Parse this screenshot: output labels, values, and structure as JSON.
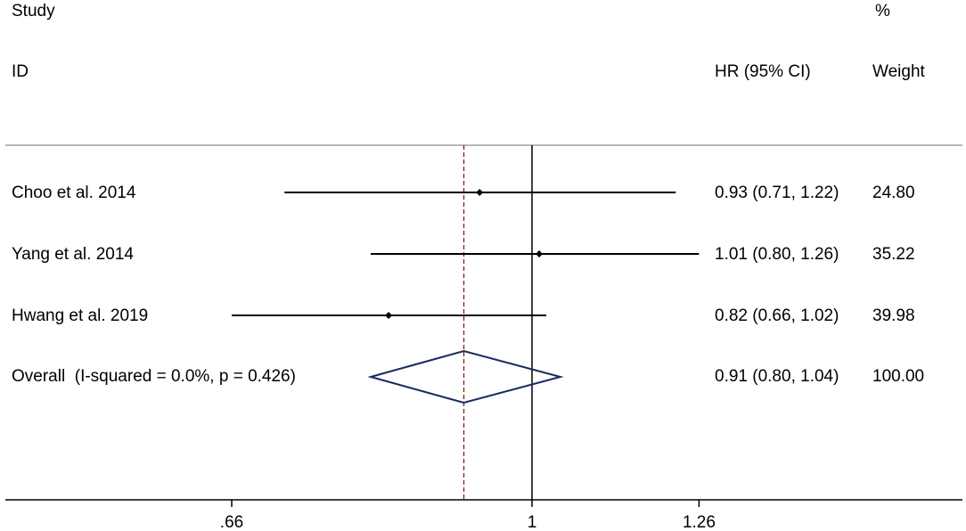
{
  "header": {
    "study_line1": "Study",
    "study_line2": "ID",
    "pct_line1": "%",
    "hr_label": "HR (95% CI)",
    "weight_label": "Weight"
  },
  "colors": {
    "line": "#000000",
    "diamond": "#1a2a5e",
    "null_line": "#8b1a1a",
    "separator": "#a0a0a0"
  },
  "chart_data": {
    "type": "forest",
    "scale": "log",
    "xlim": [
      0.62,
      1.26
    ],
    "ticks": [
      {
        "value": 0.66,
        "label": ".66"
      },
      {
        "value": 1.0,
        "label": "1"
      },
      {
        "value": 1.26,
        "label": "1.26"
      }
    ],
    "reference_line": 1.0,
    "pooled_line": 0.91,
    "studies": [
      {
        "id": "Choo et al. 2014",
        "hr": 0.93,
        "lo": 0.71,
        "hi": 1.22,
        "ci_text": "0.93 (0.71, 1.22)",
        "weight": "24.80"
      },
      {
        "id": "Yang et al. 2014",
        "hr": 1.01,
        "lo": 0.8,
        "hi": 1.26,
        "ci_text": "1.01 (0.80, 1.26)",
        "weight": "35.22"
      },
      {
        "id": "Hwang et al. 2019",
        "hr": 0.82,
        "lo": 0.66,
        "hi": 1.02,
        "ci_text": "0.82 (0.66, 1.02)",
        "weight": "39.98"
      }
    ],
    "overall": {
      "id": "Overall  (I-squared = 0.0%, p = 0.426)",
      "hr": 0.91,
      "lo": 0.8,
      "hi": 1.04,
      "ci_text": "0.91 (0.80, 1.04)",
      "weight": "100.00"
    }
  }
}
